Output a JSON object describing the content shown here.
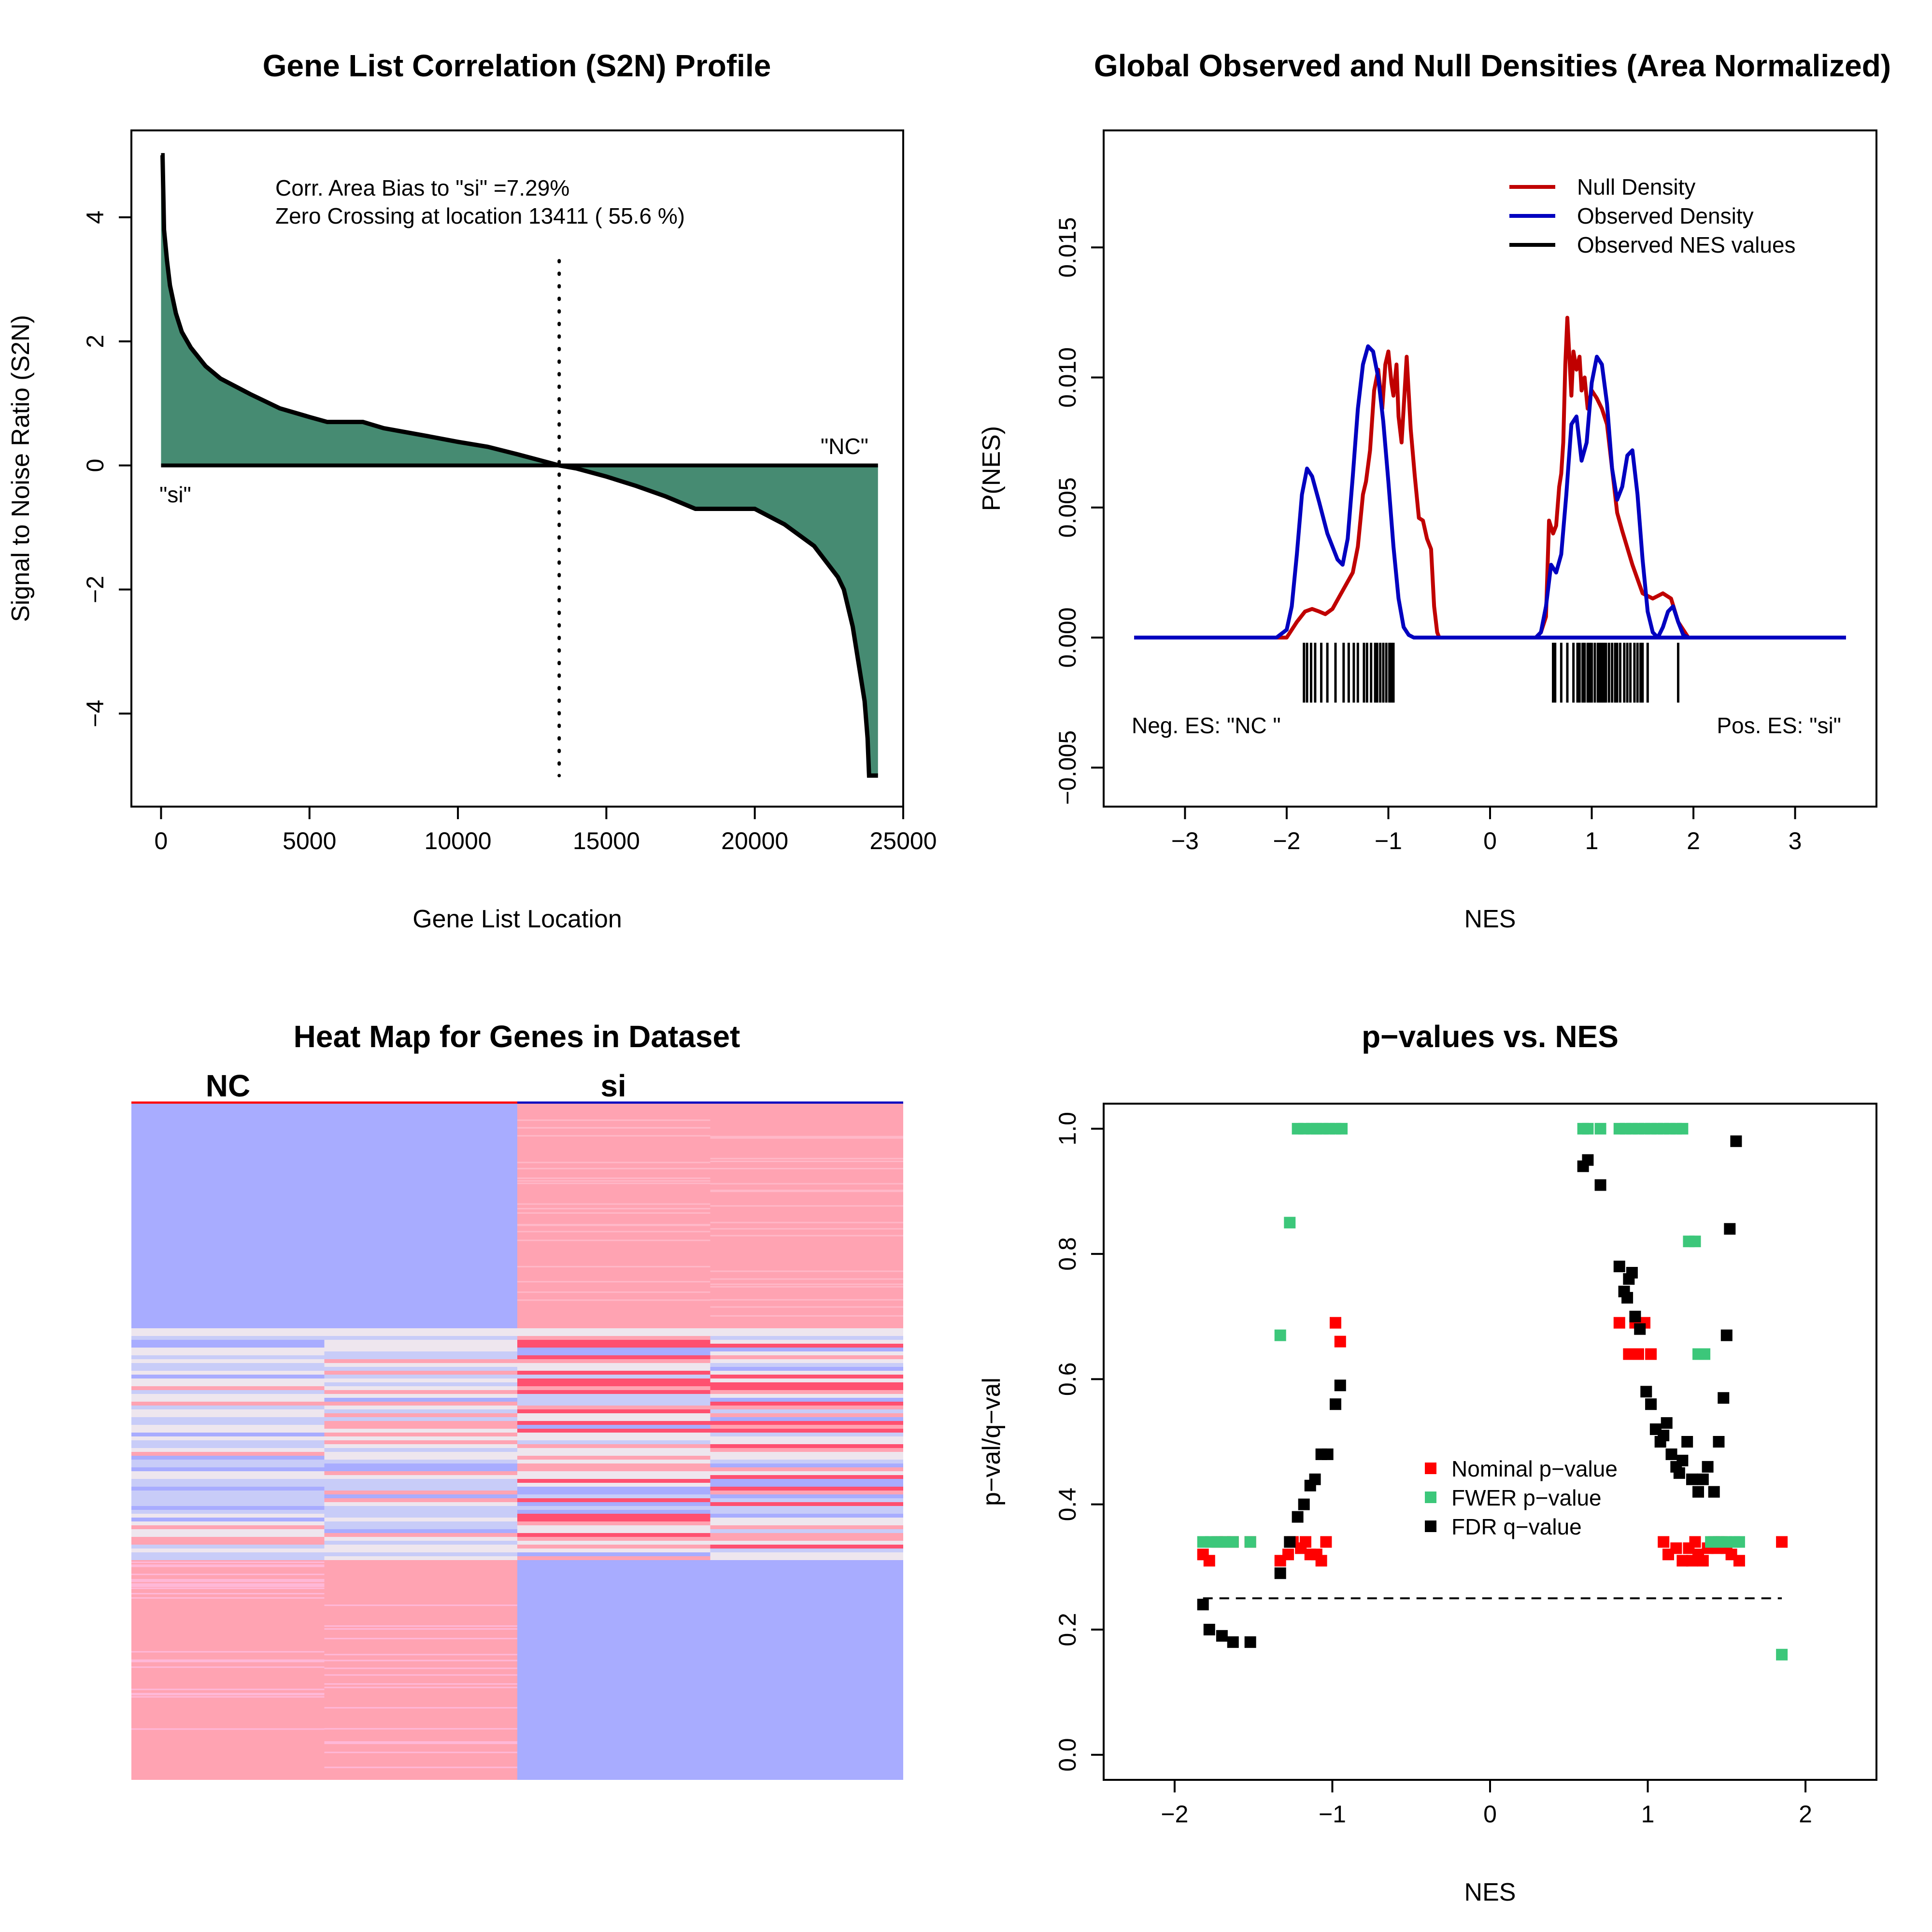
{
  "colors": {
    "s2n_fill": "#468B72",
    "null_density": "#C00000",
    "observed_density": "#0000C0",
    "nes_ticks": "#000000",
    "nominal": "#FF0000",
    "fwer": "#3CC77A",
    "fdr": "#000000",
    "heat_blue": "#A8ACFF",
    "heat_pink": "#FFA3B2",
    "heat_red": "#FF5070",
    "heat_lightblue": "#C8CCF8",
    "heat_pale": "#EEE6EE"
  },
  "chart_data": [
    {
      "id": "s2n_profile",
      "type": "area",
      "title": "Gene List Correlation (S2N) Profile",
      "xlabel": "Gene List Location",
      "ylabel": "Signal to Noise Ratio (S2N)",
      "xlim": [
        -1000,
        25000
      ],
      "ylim": [
        -5.5,
        5.4
      ],
      "xticks": [
        0,
        5000,
        10000,
        15000,
        20000,
        25000
      ],
      "xtick_labels": [
        "0",
        "5000",
        "10000",
        "15000",
        "20000",
        "25000"
      ],
      "yticks": [
        -4,
        -2,
        0,
        2,
        4
      ],
      "ytick_labels": [
        "−4",
        "−2",
        "0",
        "2",
        "4"
      ],
      "annotations": [
        "Corr. Area Bias to \"si\" =7.29%",
        "Zero Crossing at location  13411   ( 55.6  %)"
      ],
      "label_left": "\"si\"",
      "label_right": "\"NC\"",
      "zero_crossing": 13411,
      "x": [
        0,
        50,
        100,
        200,
        300,
        500,
        700,
        1000,
        1500,
        2000,
        3000,
        4000,
        5000,
        5600,
        6800,
        7500,
        9000,
        10000,
        11000,
        12000,
        13411,
        14000,
        15000,
        16000,
        17000,
        18000,
        20000,
        21000,
        22000,
        22800,
        23000,
        23300,
        23500,
        23700,
        23800,
        23850,
        23900,
        24000,
        24150
      ],
      "y": [
        5.0,
        5.0,
        3.8,
        3.3,
        2.9,
        2.45,
        2.15,
        1.9,
        1.6,
        1.4,
        1.15,
        0.92,
        0.78,
        0.7,
        0.7,
        0.6,
        0.47,
        0.38,
        0.3,
        0.18,
        0.0,
        -0.05,
        -0.18,
        -0.33,
        -0.5,
        -0.7,
        -0.7,
        -0.95,
        -1.3,
        -1.8,
        -2.0,
        -2.6,
        -3.2,
        -3.8,
        -4.4,
        -5.0,
        -5.0,
        -5.0,
        -5.0
      ]
    },
    {
      "id": "densities",
      "type": "line",
      "title": "Global Observed and Null Densities (Area Normalized)",
      "xlabel": "NES",
      "ylabel": "P(NES)",
      "xlim": [
        -3.8,
        3.8
      ],
      "ylim": [
        -0.0065,
        0.0195
      ],
      "xticks": [
        -3,
        -2,
        -1,
        0,
        1,
        2,
        3
      ],
      "xtick_labels": [
        "−3",
        "−2",
        "−1",
        "0",
        "1",
        "2",
        "3"
      ],
      "yticks": [
        -0.005,
        0.0,
        0.005,
        0.01,
        0.015
      ],
      "ytick_labels": [
        "−0.005",
        "0.000",
        "0.005",
        "0.010",
        "0.015"
      ],
      "legend": [
        "Null Density",
        "Observed Density",
        "Observed NES values"
      ],
      "legend_position": "top-right",
      "neg_label": "Neg. ES: \"NC \"",
      "pos_label": "Pos. ES: \"si\"",
      "series": [
        {
          "name": "Null Density",
          "x": [
            -3.5,
            -2.0,
            -1.9,
            -1.82,
            -1.75,
            -1.68,
            -1.62,
            -1.55,
            -1.45,
            -1.35,
            -1.3,
            -1.25,
            -1.22,
            -1.18,
            -1.14,
            -1.1,
            -1.06,
            -1.03,
            -1.0,
            -0.97,
            -0.95,
            -0.92,
            -0.9,
            -0.87,
            -0.85,
            -0.82,
            -0.78,
            -0.74,
            -0.7,
            -0.66,
            -0.62,
            -0.58,
            -0.55,
            -0.52,
            -0.5,
            -0.45,
            0.4,
            0.45,
            0.5,
            0.55,
            0.58,
            0.62,
            0.65,
            0.68,
            0.7,
            0.72,
            0.74,
            0.76,
            0.78,
            0.8,
            0.82,
            0.85,
            0.88,
            0.9,
            0.93,
            0.96,
            1.0,
            1.05,
            1.1,
            1.15,
            1.2,
            1.25,
            1.3,
            1.4,
            1.5,
            1.6,
            1.7,
            1.78,
            1.85,
            1.95,
            3.5
          ],
          "y": [
            0.0,
            0.0,
            0.0006,
            0.001,
            0.0011,
            0.001,
            0.0009,
            0.0011,
            0.0018,
            0.0025,
            0.0035,
            0.0055,
            0.006,
            0.0072,
            0.0095,
            0.0103,
            0.0088,
            0.0105,
            0.011,
            0.0098,
            0.0093,
            0.0105,
            0.0085,
            0.0075,
            0.0088,
            0.0108,
            0.008,
            0.0062,
            0.0046,
            0.0045,
            0.0038,
            0.0034,
            0.0012,
            0.0002,
            0.0,
            0.0,
            0.0,
            0.0,
            0.0002,
            0.0008,
            0.0045,
            0.004,
            0.0043,
            0.0058,
            0.0063,
            0.0075,
            0.0105,
            0.0123,
            0.0108,
            0.0093,
            0.011,
            0.0103,
            0.0108,
            0.0095,
            0.01,
            0.0088,
            0.0095,
            0.0092,
            0.0088,
            0.0082,
            0.0065,
            0.0048,
            0.0041,
            0.0028,
            0.0017,
            0.0015,
            0.0017,
            0.0015,
            0.0006,
            0.0,
            0.0
          ]
        },
        {
          "name": "Observed Density",
          "x": [
            -3.5,
            -2.1,
            -2.0,
            -1.95,
            -1.9,
            -1.85,
            -1.8,
            -1.75,
            -1.68,
            -1.6,
            -1.5,
            -1.45,
            -1.4,
            -1.35,
            -1.3,
            -1.25,
            -1.2,
            -1.15,
            -1.1,
            -1.05,
            -1.0,
            -0.95,
            -0.9,
            -0.85,
            -0.8,
            -0.75,
            -0.7,
            -0.65,
            3.5
          ],
          "y": [
            0.0,
            0.0,
            0.0003,
            0.0012,
            0.0032,
            0.0055,
            0.0065,
            0.0062,
            0.0052,
            0.004,
            0.003,
            0.0028,
            0.0038,
            0.0062,
            0.0088,
            0.0105,
            0.0112,
            0.011,
            0.01,
            0.0083,
            0.006,
            0.0035,
            0.0015,
            0.0004,
            0.0001,
            0.0,
            0.0,
            0.0,
            0.0
          ]
        },
        {
          "name": "Observed Density (positive)",
          "x": [
            0.45,
            0.5,
            0.55,
            0.6,
            0.65,
            0.7,
            0.75,
            0.8,
            0.85,
            0.9,
            0.95,
            1.0,
            1.05,
            1.1,
            1.15,
            1.2,
            1.25,
            1.3,
            1.35,
            1.4,
            1.45,
            1.5,
            1.55,
            1.6,
            1.65,
            1.7,
            1.75,
            1.8,
            1.85,
            1.9,
            1.95,
            2.0
          ],
          "y": [
            0.0,
            0.0002,
            0.0012,
            0.0028,
            0.0025,
            0.0032,
            0.0055,
            0.0082,
            0.0085,
            0.0068,
            0.0075,
            0.0098,
            0.0108,
            0.0105,
            0.009,
            0.0065,
            0.0053,
            0.0058,
            0.007,
            0.0072,
            0.0055,
            0.003,
            0.001,
            0.0002,
            0.0,
            0.0004,
            0.001,
            0.0012,
            0.0006,
            0.0001,
            0.0,
            0.0
          ]
        }
      ],
      "nes_values": [
        -1.83,
        -1.8,
        -1.76,
        -1.72,
        -1.66,
        -1.6,
        -1.52,
        -1.44,
        -1.39,
        -1.34,
        -1.3,
        -1.24,
        -1.21,
        -1.17,
        -1.13,
        -1.11,
        -1.08,
        -1.05,
        -1.02,
        -0.99,
        -0.97,
        -0.95,
        0.62,
        0.64,
        0.7,
        0.76,
        0.82,
        0.86,
        0.88,
        0.91,
        0.93,
        0.96,
        0.98,
        1.0,
        1.03,
        1.06,
        1.08,
        1.1,
        1.12,
        1.14,
        1.17,
        1.2,
        1.23,
        1.25,
        1.28,
        1.32,
        1.35,
        1.38,
        1.42,
        1.45,
        1.48,
        1.5,
        1.55,
        1.85
      ]
    },
    {
      "id": "heatmap",
      "type": "heatmap",
      "title": "Heat Map for Genes in Dataset",
      "class_labels": [
        "NC",
        "si"
      ]
    },
    {
      "id": "pvalues",
      "type": "scatter",
      "title": "p−values vs. NES",
      "xlabel": "NES",
      "ylabel": "p−val/q−val",
      "xlim": [
        -2.45,
        2.45
      ],
      "ylim": [
        -0.04,
        1.04
      ],
      "xticks": [
        -2,
        -1,
        0,
        1,
        2
      ],
      "xtick_labels": [
        "−2",
        "−1",
        "0",
        "1",
        "2"
      ],
      "yticks": [
        0.0,
        0.2,
        0.4,
        0.6,
        0.8,
        1.0
      ],
      "ytick_labels": [
        "0.0",
        "0.2",
        "0.4",
        "0.6",
        "0.8",
        "1.0"
      ],
      "legend": [
        "Nominal p−value",
        "FWER p−value",
        "FDR q−value"
      ],
      "legend_position": "center",
      "threshold": 0.25,
      "series": [
        {
          "name": "Nominal p−value",
          "points": [
            [
              -1.82,
              0.32
            ],
            [
              -1.78,
              0.31
            ],
            [
              -1.73,
              0.34
            ],
            [
              -1.68,
              0.34
            ],
            [
              -1.63,
              0.34
            ],
            [
              -1.52,
              0.34
            ],
            [
              -1.33,
              0.31
            ],
            [
              -1.28,
              0.32
            ],
            [
              -1.25,
              0.34
            ],
            [
              -1.2,
              0.33
            ],
            [
              -1.17,
              0.34
            ],
            [
              -1.14,
              0.32
            ],
            [
              -1.1,
              0.32
            ],
            [
              -1.07,
              0.31
            ],
            [
              -1.04,
              0.34
            ],
            [
              -0.98,
              0.69
            ],
            [
              -0.95,
              0.66
            ],
            [
              0.82,
              0.69
            ],
            [
              0.88,
              0.64
            ],
            [
              0.92,
              0.69
            ],
            [
              0.94,
              0.64
            ],
            [
              0.98,
              0.69
            ],
            [
              1.02,
              0.64
            ],
            [
              1.1,
              0.34
            ],
            [
              1.13,
              0.32
            ],
            [
              1.18,
              0.33
            ],
            [
              1.22,
              0.31
            ],
            [
              1.26,
              0.33
            ],
            [
              1.28,
              0.31
            ],
            [
              1.3,
              0.34
            ],
            [
              1.32,
              0.32
            ],
            [
              1.35,
              0.31
            ],
            [
              1.38,
              0.33
            ],
            [
              1.42,
              0.34
            ],
            [
              1.44,
              0.33
            ],
            [
              1.47,
              0.34
            ],
            [
              1.5,
              0.33
            ],
            [
              1.53,
              0.32
            ],
            [
              1.58,
              0.31
            ],
            [
              1.85,
              0.34
            ]
          ]
        },
        {
          "name": "FWER p−value",
          "points": [
            [
              -1.82,
              0.34
            ],
            [
              -1.77,
              0.34
            ],
            [
              -1.7,
              0.34
            ],
            [
              -1.63,
              0.34
            ],
            [
              -1.52,
              0.34
            ],
            [
              -1.33,
              0.67
            ],
            [
              -1.27,
              0.85
            ],
            [
              -1.22,
              1.0
            ],
            [
              -1.18,
              1.0
            ],
            [
              -1.13,
              1.0
            ],
            [
              -1.1,
              1.0
            ],
            [
              -1.06,
              1.0
            ],
            [
              -1.02,
              1.0
            ],
            [
              -0.98,
              1.0
            ],
            [
              -0.94,
              1.0
            ],
            [
              0.59,
              1.0
            ],
            [
              0.62,
              1.0
            ],
            [
              0.7,
              1.0
            ],
            [
              0.82,
              1.0
            ],
            [
              0.86,
              1.0
            ],
            [
              0.9,
              1.0
            ],
            [
              0.94,
              1.0
            ],
            [
              0.98,
              1.0
            ],
            [
              1.02,
              1.0
            ],
            [
              1.06,
              1.0
            ],
            [
              1.1,
              1.0
            ],
            [
              1.14,
              1.0
            ],
            [
              1.18,
              1.0
            ],
            [
              1.22,
              1.0
            ],
            [
              1.26,
              0.82
            ],
            [
              1.3,
              0.82
            ],
            [
              1.32,
              0.64
            ],
            [
              1.36,
              0.64
            ],
            [
              1.4,
              0.34
            ],
            [
              1.45,
              0.34
            ],
            [
              1.5,
              0.34
            ],
            [
              1.55,
              0.34
            ],
            [
              1.58,
              0.34
            ],
            [
              1.85,
              0.16
            ]
          ]
        },
        {
          "name": "FDR q−value",
          "points": [
            [
              -1.82,
              0.24
            ],
            [
              -1.78,
              0.2
            ],
            [
              -1.7,
              0.19
            ],
            [
              -1.63,
              0.18
            ],
            [
              -1.52,
              0.18
            ],
            [
              -1.33,
              0.29
            ],
            [
              -1.27,
              0.34
            ],
            [
              -1.22,
              0.38
            ],
            [
              -1.18,
              0.4
            ],
            [
              -1.14,
              0.43
            ],
            [
              -1.11,
              0.44
            ],
            [
              -1.07,
              0.48
            ],
            [
              -1.03,
              0.48
            ],
            [
              -0.98,
              0.56
            ],
            [
              -0.95,
              0.59
            ],
            [
              0.59,
              0.94
            ],
            [
              0.62,
              0.95
            ],
            [
              0.7,
              0.91
            ],
            [
              0.82,
              0.78
            ],
            [
              0.85,
              0.74
            ],
            [
              0.87,
              0.73
            ],
            [
              0.88,
              0.76
            ],
            [
              0.9,
              0.77
            ],
            [
              0.92,
              0.7
            ],
            [
              0.95,
              0.68
            ],
            [
              0.99,
              0.58
            ],
            [
              1.02,
              0.56
            ],
            [
              1.05,
              0.52
            ],
            [
              1.08,
              0.5
            ],
            [
              1.1,
              0.51
            ],
            [
              1.12,
              0.53
            ],
            [
              1.15,
              0.48
            ],
            [
              1.18,
              0.46
            ],
            [
              1.2,
              0.45
            ],
            [
              1.22,
              0.47
            ],
            [
              1.25,
              0.5
            ],
            [
              1.28,
              0.44
            ],
            [
              1.32,
              0.42
            ],
            [
              1.35,
              0.44
            ],
            [
              1.38,
              0.46
            ],
            [
              1.42,
              0.42
            ],
            [
              1.45,
              0.5
            ],
            [
              1.48,
              0.57
            ],
            [
              1.5,
              0.67
            ],
            [
              1.52,
              0.84
            ],
            [
              1.56,
              0.98
            ]
          ]
        }
      ]
    }
  ]
}
